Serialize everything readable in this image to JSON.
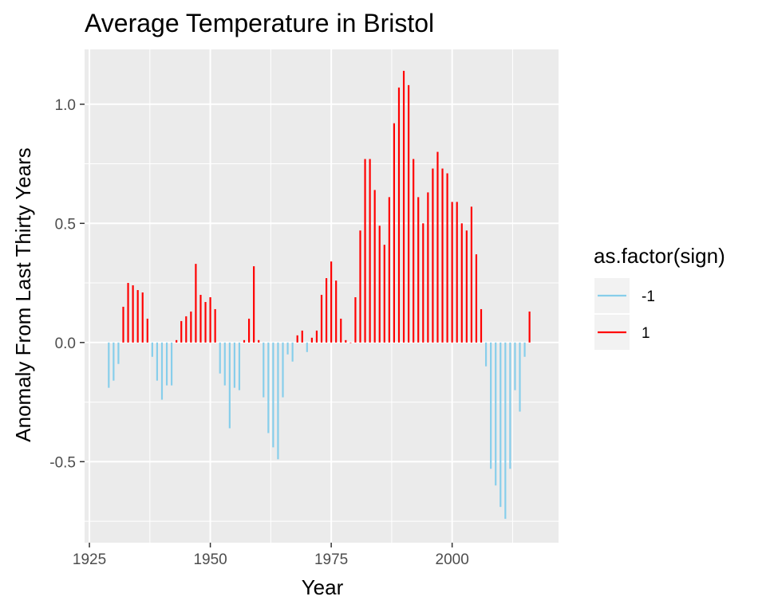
{
  "chart_data": {
    "type": "bar",
    "title": "Average Temperature in Bristol",
    "xlabel": "Year",
    "ylabel": "Anomaly From Last Thirty Years",
    "xlim": [
      1924,
      2022
    ],
    "ylim": [
      -0.84,
      1.23
    ],
    "x_ticks": [
      1925,
      1950,
      1975,
      2000
    ],
    "x_tick_labels": [
      "1925",
      "1950",
      "1975",
      "2000"
    ],
    "y_ticks": [
      -0.5,
      0.0,
      0.5,
      1.0
    ],
    "y_tick_labels": [
      "-0.5",
      "0.0",
      "0.5",
      "1.0"
    ],
    "grid": true,
    "legend": {
      "title": "as.factor(sign)",
      "position": "right",
      "entries": [
        {
          "label": "-1",
          "color": "#87ceeb"
        },
        {
          "label": "1",
          "color": "#ff0000"
        }
      ]
    },
    "colors": {
      "negative": "#87ceeb",
      "positive": "#ff0000",
      "panel": "#ebebeb",
      "grid": "#ffffff"
    },
    "x": [
      1929,
      1930,
      1931,
      1932,
      1933,
      1934,
      1935,
      1936,
      1937,
      1938,
      1939,
      1940,
      1941,
      1942,
      1943,
      1944,
      1945,
      1946,
      1947,
      1948,
      1949,
      1950,
      1951,
      1952,
      1953,
      1954,
      1955,
      1956,
      1957,
      1958,
      1959,
      1960,
      1961,
      1962,
      1963,
      1964,
      1965,
      1966,
      1967,
      1968,
      1969,
      1970,
      1971,
      1972,
      1973,
      1974,
      1975,
      1976,
      1977,
      1978,
      1979,
      1980,
      1981,
      1982,
      1983,
      1984,
      1985,
      1986,
      1987,
      1988,
      1989,
      1990,
      1991,
      1992,
      1993,
      1994,
      1995,
      1996,
      1997,
      1998,
      1999,
      2000,
      2001,
      2002,
      2003,
      2004,
      2005,
      2006,
      2007,
      2008,
      2009,
      2010,
      2011,
      2012,
      2013,
      2014,
      2015,
      2016
    ],
    "values": [
      -0.19,
      -0.16,
      -0.09,
      0.15,
      0.25,
      0.24,
      0.22,
      0.21,
      0.1,
      -0.06,
      -0.16,
      -0.24,
      -0.18,
      -0.18,
      0.01,
      0.09,
      0.11,
      0.13,
      0.33,
      0.2,
      0.17,
      0.19,
      0.14,
      -0.13,
      -0.18,
      -0.36,
      -0.19,
      -0.2,
      0.01,
      0.1,
      0.32,
      0.01,
      -0.23,
      -0.38,
      -0.44,
      -0.49,
      -0.23,
      -0.05,
      -0.08,
      0.03,
      0.05,
      -0.04,
      0.02,
      0.05,
      0.2,
      0.27,
      0.34,
      0.26,
      0.1,
      0.01,
      0.0,
      0.19,
      0.47,
      0.77,
      0.77,
      0.64,
      0.49,
      0.41,
      0.61,
      0.92,
      1.07,
      1.14,
      1.08,
      0.77,
      0.61,
      0.5,
      0.63,
      0.73,
      0.8,
      0.73,
      0.71,
      0.59,
      0.59,
      0.5,
      0.47,
      0.57,
      0.37,
      0.14,
      -0.1,
      -0.53,
      -0.6,
      -0.69,
      -0.74,
      -0.53,
      -0.2,
      -0.29,
      -0.06,
      0.13
    ]
  }
}
